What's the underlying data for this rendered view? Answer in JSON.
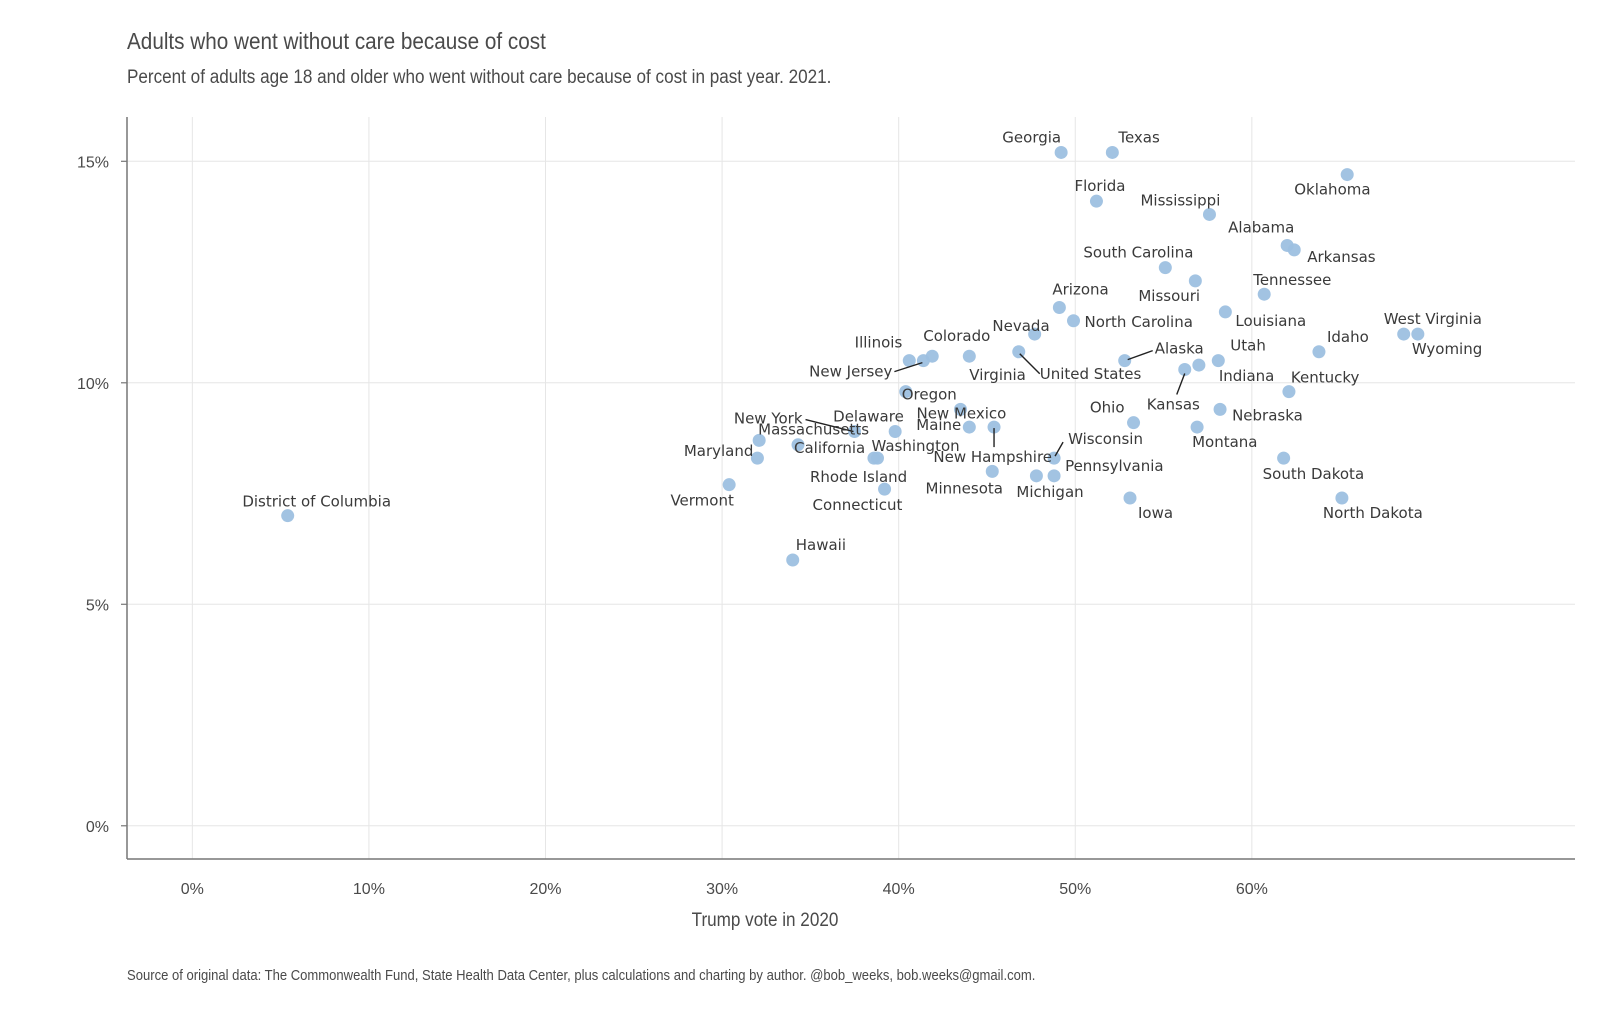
{
  "chart_data": {
    "type": "scatter",
    "title": "Adults who went without care because of cost",
    "subtitle": "Percent of adults age 18 and older who went without care because of cost in past year. 2021.",
    "xlabel": "Trump vote in 2020",
    "ylabel": "",
    "caption": "Source of original data: The Commonwealth Fund, State Health Data Center, plus calculations and charting by author. @bob_weeks, bob.weeks@gmail.com.",
    "xlim": [
      -3.7,
      78.3
    ],
    "ylim": [
      -0.75,
      16.0
    ],
    "x_ticks": [
      0,
      10,
      20,
      30,
      40,
      50,
      60
    ],
    "x_tick_labels": [
      "0%",
      "10%",
      "20%",
      "30%",
      "40%",
      "50%",
      "60%"
    ],
    "y_ticks": [
      0,
      5,
      10,
      15
    ],
    "y_tick_labels": [
      "0%",
      "5%",
      "10%",
      "15%"
    ],
    "grid": true,
    "point_color": "#9dc0e0",
    "points": [
      {
        "label": "District of Columbia",
        "x": 5.4,
        "y": 7.0
      },
      {
        "label": "Vermont",
        "x": 30.4,
        "y": 7.7
      },
      {
        "label": "Massachusetts",
        "x": 32.1,
        "y": 8.7
      },
      {
        "label": "Maryland",
        "x": 32.0,
        "y": 8.3
      },
      {
        "label": "Hawaii",
        "x": 34.0,
        "y": 6.0
      },
      {
        "label": "California",
        "x": 34.3,
        "y": 8.6
      },
      {
        "label": "New York",
        "x": 37.5,
        "y": 8.9
      },
      {
        "label": "Rhode Island",
        "x": 38.6,
        "y": 8.3
      },
      {
        "label": "Delaware",
        "x": 39.8,
        "y": 8.9
      },
      {
        "label": "Washington",
        "x": 38.8,
        "y": 8.3
      },
      {
        "label": "Connecticut",
        "x": 39.2,
        "y": 7.6
      },
      {
        "label": "Illinois",
        "x": 40.6,
        "y": 10.5
      },
      {
        "label": "New Jersey",
        "x": 41.4,
        "y": 10.5
      },
      {
        "label": "Oregon",
        "x": 40.4,
        "y": 9.8
      },
      {
        "label": "Colorado",
        "x": 41.9,
        "y": 10.6
      },
      {
        "label": "New Mexico",
        "x": 43.5,
        "y": 9.4
      },
      {
        "label": "Virginia",
        "x": 44.0,
        "y": 10.6
      },
      {
        "label": "Maine",
        "x": 44.0,
        "y": 9.0
      },
      {
        "label": "Nevada",
        "x": 47.7,
        "y": 11.1
      },
      {
        "label": "Minnesota",
        "x": 45.3,
        "y": 8.0
      },
      {
        "label": "New Hampshire",
        "x": 45.4,
        "y": 9.0
      },
      {
        "label": "United States",
        "x": 46.8,
        "y": 10.7
      },
      {
        "label": "Michigan",
        "x": 47.8,
        "y": 7.9
      },
      {
        "label": "Pennsylvania",
        "x": 48.8,
        "y": 7.9
      },
      {
        "label": "Wisconsin",
        "x": 48.8,
        "y": 8.3
      },
      {
        "label": "Arizona",
        "x": 49.1,
        "y": 11.7
      },
      {
        "label": "Georgia",
        "x": 49.2,
        "y": 15.2
      },
      {
        "label": "North Carolina",
        "x": 49.9,
        "y": 11.4
      },
      {
        "label": "Florida",
        "x": 51.2,
        "y": 14.1
      },
      {
        "label": "Texas",
        "x": 52.1,
        "y": 15.2
      },
      {
        "label": "Alaska",
        "x": 52.8,
        "y": 10.5
      },
      {
        "label": "Iowa",
        "x": 53.1,
        "y": 7.4
      },
      {
        "label": "Ohio",
        "x": 53.3,
        "y": 9.1
      },
      {
        "label": "South Carolina",
        "x": 55.1,
        "y": 12.6
      },
      {
        "label": "Kansas",
        "x": 56.2,
        "y": 10.3
      },
      {
        "label": "Missouri",
        "x": 56.8,
        "y": 12.3
      },
      {
        "label": "Montana",
        "x": 56.9,
        "y": 9.0
      },
      {
        "label": "Indiana",
        "x": 57.0,
        "y": 10.4
      },
      {
        "label": "Mississippi",
        "x": 57.6,
        "y": 13.8
      },
      {
        "label": "Utah",
        "x": 58.1,
        "y": 10.5
      },
      {
        "label": "Nebraska",
        "x": 58.2,
        "y": 9.4
      },
      {
        "label": "Louisiana",
        "x": 58.5,
        "y": 11.6
      },
      {
        "label": "Tennessee",
        "x": 60.7,
        "y": 12.0
      },
      {
        "label": "South Dakota",
        "x": 61.8,
        "y": 8.3
      },
      {
        "label": "Kentucky",
        "x": 62.1,
        "y": 9.8
      },
      {
        "label": "Alabama",
        "x": 62.0,
        "y": 13.1
      },
      {
        "label": "Arkansas",
        "x": 62.4,
        "y": 13.0
      },
      {
        "label": "Idaho",
        "x": 63.8,
        "y": 10.7
      },
      {
        "label": "North Dakota",
        "x": 65.1,
        "y": 7.4
      },
      {
        "label": "Oklahoma",
        "x": 65.4,
        "y": 14.7
      },
      {
        "label": "West Virginia",
        "x": 68.6,
        "y": 11.1
      },
      {
        "label": "Wyoming",
        "x": 69.4,
        "y": 11.1
      }
    ]
  }
}
